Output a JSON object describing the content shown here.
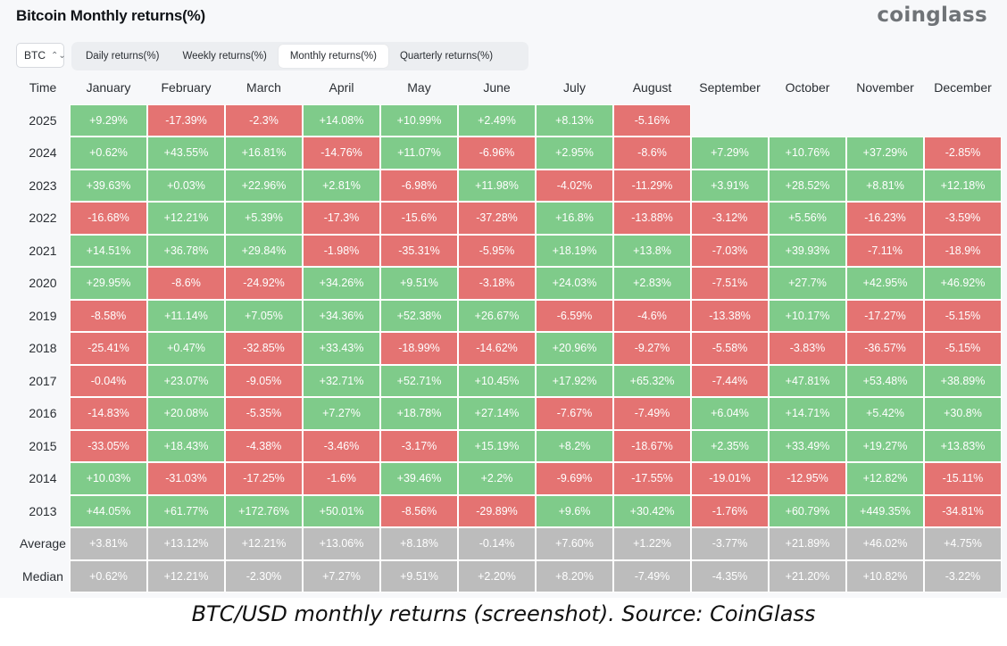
{
  "header": {
    "title": "Bitcoin Monthly returns(%)",
    "brand": "coinglass"
  },
  "asset_select": {
    "value": "BTC"
  },
  "tabs": [
    {
      "label": "Daily returns(%)",
      "active": false
    },
    {
      "label": "Weekly returns(%)",
      "active": false
    },
    {
      "label": "Monthly returns(%)",
      "active": true
    },
    {
      "label": "Quarterly returns(%)",
      "active": false
    }
  ],
  "colors": {
    "positive": "#7fcb8a",
    "negative": "#e47372",
    "summary": "#bcbcbc"
  },
  "table": {
    "corner_label": "Time",
    "months": [
      "January",
      "February",
      "March",
      "April",
      "May",
      "June",
      "July",
      "August",
      "September",
      "October",
      "November",
      "December"
    ],
    "rows": [
      {
        "year": "2025",
        "values": [
          "+9.29%",
          "-17.39%",
          "-2.3%",
          "+14.08%",
          "+10.99%",
          "+2.49%",
          "+8.13%",
          "-5.16%"
        ]
      },
      {
        "year": "2024",
        "values": [
          "+0.62%",
          "+43.55%",
          "+16.81%",
          "-14.76%",
          "+11.07%",
          "-6.96%",
          "+2.95%",
          "-8.6%",
          "+7.29%",
          "+10.76%",
          "+37.29%",
          "-2.85%"
        ]
      },
      {
        "year": "2023",
        "values": [
          "+39.63%",
          "+0.03%",
          "+22.96%",
          "+2.81%",
          "-6.98%",
          "+11.98%",
          "-4.02%",
          "-11.29%",
          "+3.91%",
          "+28.52%",
          "+8.81%",
          "+12.18%"
        ]
      },
      {
        "year": "2022",
        "values": [
          "-16.68%",
          "+12.21%",
          "+5.39%",
          "-17.3%",
          "-15.6%",
          "-37.28%",
          "+16.8%",
          "-13.88%",
          "-3.12%",
          "+5.56%",
          "-16.23%",
          "-3.59%"
        ]
      },
      {
        "year": "2021",
        "values": [
          "+14.51%",
          "+36.78%",
          "+29.84%",
          "-1.98%",
          "-35.31%",
          "-5.95%",
          "+18.19%",
          "+13.8%",
          "-7.03%",
          "+39.93%",
          "-7.11%",
          "-18.9%"
        ]
      },
      {
        "year": "2020",
        "values": [
          "+29.95%",
          "-8.6%",
          "-24.92%",
          "+34.26%",
          "+9.51%",
          "-3.18%",
          "+24.03%",
          "+2.83%",
          "-7.51%",
          "+27.7%",
          "+42.95%",
          "+46.92%"
        ]
      },
      {
        "year": "2019",
        "values": [
          "-8.58%",
          "+11.14%",
          "+7.05%",
          "+34.36%",
          "+52.38%",
          "+26.67%",
          "-6.59%",
          "-4.6%",
          "-13.38%",
          "+10.17%",
          "-17.27%",
          "-5.15%"
        ]
      },
      {
        "year": "2018",
        "values": [
          "-25.41%",
          "+0.47%",
          "-32.85%",
          "+33.43%",
          "-18.99%",
          "-14.62%",
          "+20.96%",
          "-9.27%",
          "-5.58%",
          "-3.83%",
          "-36.57%",
          "-5.15%"
        ]
      },
      {
        "year": "2017",
        "values": [
          "-0.04%",
          "+23.07%",
          "-9.05%",
          "+32.71%",
          "+52.71%",
          "+10.45%",
          "+17.92%",
          "+65.32%",
          "-7.44%",
          "+47.81%",
          "+53.48%",
          "+38.89%"
        ]
      },
      {
        "year": "2016",
        "values": [
          "-14.83%",
          "+20.08%",
          "-5.35%",
          "+7.27%",
          "+18.78%",
          "+27.14%",
          "-7.67%",
          "-7.49%",
          "+6.04%",
          "+14.71%",
          "+5.42%",
          "+30.8%"
        ]
      },
      {
        "year": "2015",
        "values": [
          "-33.05%",
          "+18.43%",
          "-4.38%",
          "-3.46%",
          "-3.17%",
          "+15.19%",
          "+8.2%",
          "-18.67%",
          "+2.35%",
          "+33.49%",
          "+19.27%",
          "+13.83%"
        ]
      },
      {
        "year": "2014",
        "values": [
          "+10.03%",
          "-31.03%",
          "-17.25%",
          "-1.6%",
          "+39.46%",
          "+2.2%",
          "-9.69%",
          "-17.55%",
          "-19.01%",
          "-12.95%",
          "+12.82%",
          "-15.11%"
        ]
      },
      {
        "year": "2013",
        "values": [
          "+44.05%",
          "+61.77%",
          "+172.76%",
          "+50.01%",
          "-8.56%",
          "-29.89%",
          "+9.6%",
          "+30.42%",
          "-1.76%",
          "+60.79%",
          "+449.35%",
          "-34.81%"
        ]
      }
    ],
    "summary_rows": [
      {
        "label": "Average",
        "values": [
          "+3.81%",
          "+13.12%",
          "+12.21%",
          "+13.06%",
          "+8.18%",
          "-0.14%",
          "+7.60%",
          "+1.22%",
          "-3.77%",
          "+21.89%",
          "+46.02%",
          "+4.75%"
        ]
      },
      {
        "label": "Median",
        "values": [
          "+0.62%",
          "+12.21%",
          "-2.30%",
          "+7.27%",
          "+9.51%",
          "+2.20%",
          "+8.20%",
          "-7.49%",
          "-4.35%",
          "+21.20%",
          "+10.82%",
          "-3.22%"
        ]
      }
    ]
  },
  "caption": "BTC/USD monthly returns (screenshot). Source: CoinGlass"
}
